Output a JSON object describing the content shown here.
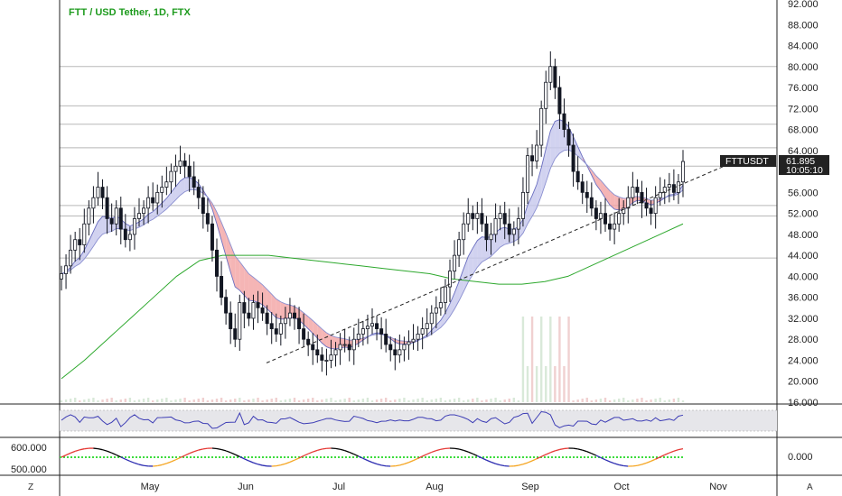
{
  "header": {
    "title": "FTT / USD Tether, 1D, FTX"
  },
  "price_tag": {
    "symbol": "FTTUSDT",
    "price": "61.895",
    "countdown": "10:05:10"
  },
  "footer": {
    "left_button": "Z",
    "right_button": "A"
  },
  "colors": {
    "up": "#ffffff",
    "down": "#131722",
    "title": "#1e9b1e",
    "ma_green": "#2da82d",
    "ribbon_red": "#e57373",
    "ribbon_blue": "#7b7fc4",
    "rsi_line": "#3d3db5",
    "osc_red": "#e53935",
    "osc_black": "#000000",
    "osc_blue": "#2b2bb0",
    "osc_orange": "#f5a623",
    "osc_zero": "#3ddc3d"
  },
  "chart_data": [
    {
      "type": "candlestick",
      "title": "FTT / USD Tether, 1D, FTX",
      "x_ticks": [
        "May",
        "Jun",
        "Jul",
        "Aug",
        "Sep",
        "Oct",
        "Nov"
      ],
      "y_ticks": [
        "92.000",
        "88.000",
        "84.000",
        "80.000",
        "76.000",
        "72.000",
        "68.000",
        "64.000",
        "60.000",
        "56.000",
        "52.000",
        "48.000",
        "44.000",
        "40.000",
        "36.000",
        "32.000",
        "28.000",
        "24.000",
        "20.000",
        "16.000"
      ],
      "ylim": [
        16,
        92
      ],
      "last_price": 61.895,
      "horizontal_levels": [
        80.0,
        72.5,
        69.0,
        64.5,
        61.0,
        53.5,
        51.5,
        43.5
      ],
      "trendline": [
        [
          0.33,
          23.5
        ],
        [
          1.0,
          62.0
        ]
      ],
      "closes": [
        40.5,
        42,
        45,
        47,
        46,
        50,
        53,
        55,
        57,
        55,
        51,
        50,
        53,
        49,
        47,
        48,
        51,
        52,
        53,
        55,
        54,
        56,
        57,
        58,
        60,
        61,
        62,
        61,
        59,
        57,
        55,
        52,
        50,
        45,
        40,
        36,
        33,
        30,
        28,
        35,
        33,
        32,
        35,
        34,
        33,
        31,
        30,
        29,
        31,
        32,
        33,
        32,
        30,
        28,
        27,
        26,
        25,
        24,
        24,
        25,
        26,
        27,
        27,
        26,
        28,
        29,
        30,
        30.5,
        31,
        30,
        29,
        27,
        26,
        25,
        26,
        27,
        27.5,
        28,
        29,
        30,
        31,
        33,
        34,
        35,
        38,
        41,
        44,
        47,
        50,
        52,
        51,
        52,
        50,
        47,
        48,
        51,
        52,
        50,
        48,
        49,
        51,
        56,
        63,
        62,
        65,
        72,
        77,
        80,
        76,
        71,
        68,
        65,
        60,
        58,
        56,
        55,
        53,
        51,
        52,
        50,
        49,
        50,
        52,
        53,
        55,
        57,
        56,
        54,
        53,
        52,
        55,
        56,
        57,
        57.5,
        56,
        58,
        61.9
      ],
      "volume_scale_note": "",
      "sma": [
        20.5,
        24,
        28,
        32,
        36,
        40,
        43,
        44,
        44,
        44,
        43.5,
        43,
        42.5,
        42,
        41.5,
        41,
        40.5,
        39.5,
        39,
        38.5,
        38.5,
        39,
        40,
        42,
        44,
        46,
        48,
        50
      ]
    },
    {
      "type": "line",
      "title": "",
      "note": "RSI-style oscillator pane"
    },
    {
      "type": "line",
      "title": "",
      "y_ticks": [
        "600.000",
        "500.000"
      ],
      "right_ticks": [
        "0.000"
      ]
    }
  ]
}
